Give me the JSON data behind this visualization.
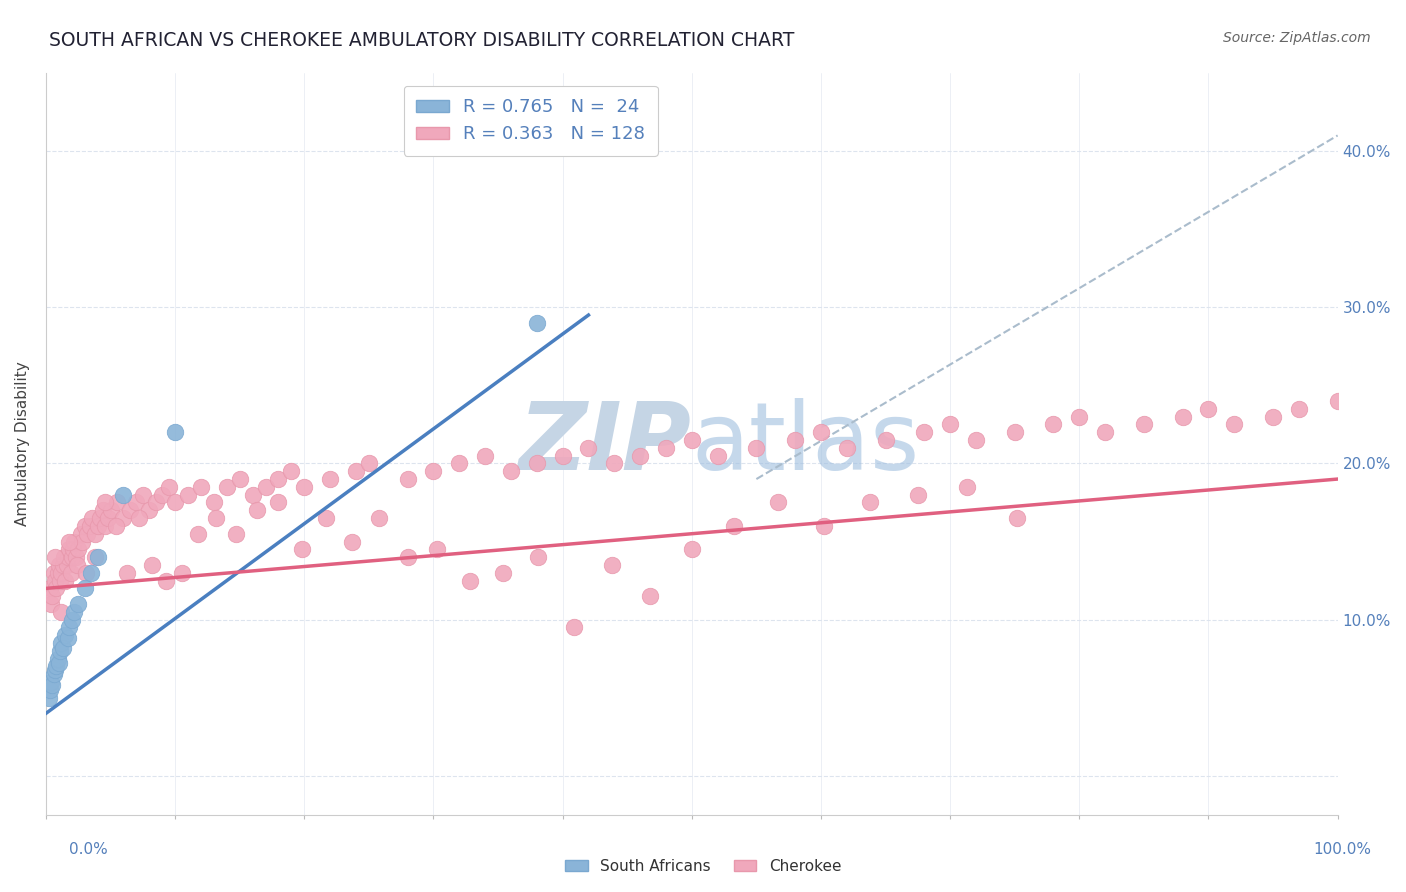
{
  "title": "SOUTH AFRICAN VS CHEROKEE AMBULATORY DISABILITY CORRELATION CHART",
  "source": "Source: ZipAtlas.com",
  "ylabel": "Ambulatory Disability",
  "south_african_color": "#8ab4d8",
  "south_african_edge": "#7aa8d0",
  "cherokee_color": "#f0a8bc",
  "cherokee_edge": "#e898ac",
  "blue_line_color": "#4a7fc0",
  "pink_line_color": "#e06080",
  "ref_line_color": "#aabccc",
  "grid_color": "#dde4ee",
  "background_color": "#ffffff",
  "watermark_color": "#c5d5e5",
  "title_color": "#222233",
  "source_color": "#666666",
  "tick_color": "#5580bb",
  "ylabel_color": "#444444",
  "xlim": [
    0.0,
    1.0
  ],
  "ylim": [
    -0.025,
    0.45
  ],
  "yticks": [
    0.0,
    0.1,
    0.2,
    0.3,
    0.4
  ],
  "sa_x": [
    0.002,
    0.003,
    0.004,
    0.005,
    0.006,
    0.007,
    0.008,
    0.009,
    0.01,
    0.011,
    0.012,
    0.013,
    0.015,
    0.017,
    0.018,
    0.02,
    0.022,
    0.025,
    0.03,
    0.035,
    0.04,
    0.06,
    0.1,
    0.38
  ],
  "sa_y": [
    0.05,
    0.055,
    0.06,
    0.058,
    0.065,
    0.068,
    0.07,
    0.075,
    0.072,
    0.08,
    0.085,
    0.082,
    0.09,
    0.088,
    0.095,
    0.1,
    0.105,
    0.11,
    0.12,
    0.13,
    0.14,
    0.18,
    0.22,
    0.29
  ],
  "ch_x": [
    0.003,
    0.004,
    0.005,
    0.006,
    0.007,
    0.008,
    0.009,
    0.01,
    0.011,
    0.012,
    0.013,
    0.014,
    0.015,
    0.016,
    0.017,
    0.018,
    0.019,
    0.02,
    0.021,
    0.022,
    0.023,
    0.025,
    0.027,
    0.028,
    0.03,
    0.032,
    0.034,
    0.036,
    0.038,
    0.04,
    0.042,
    0.044,
    0.046,
    0.048,
    0.05,
    0.055,
    0.06,
    0.065,
    0.07,
    0.075,
    0.08,
    0.085,
    0.09,
    0.095,
    0.1,
    0.11,
    0.12,
    0.13,
    0.14,
    0.15,
    0.16,
    0.17,
    0.18,
    0.19,
    0.2,
    0.22,
    0.24,
    0.25,
    0.28,
    0.3,
    0.32,
    0.34,
    0.36,
    0.38,
    0.4,
    0.42,
    0.44,
    0.46,
    0.48,
    0.5,
    0.52,
    0.55,
    0.58,
    0.6,
    0.62,
    0.65,
    0.68,
    0.7,
    0.72,
    0.75,
    0.78,
    0.8,
    0.82,
    0.85,
    0.88,
    0.9,
    0.92,
    0.95,
    0.97,
    1.0,
    0.007,
    0.012,
    0.018,
    0.024,
    0.031,
    0.038,
    0.046,
    0.054,
    0.063,
    0.072,
    0.082,
    0.093,
    0.105,
    0.118,
    0.132,
    0.147,
    0.163,
    0.18,
    0.198,
    0.217,
    0.237,
    0.258,
    0.28,
    0.303,
    0.328,
    0.354,
    0.381,
    0.409,
    0.438,
    0.468,
    0.5,
    0.533,
    0.567,
    0.602,
    0.638,
    0.675,
    0.713,
    0.752
  ],
  "ch_y": [
    0.12,
    0.11,
    0.115,
    0.13,
    0.125,
    0.12,
    0.13,
    0.135,
    0.125,
    0.13,
    0.135,
    0.14,
    0.125,
    0.135,
    0.14,
    0.145,
    0.13,
    0.14,
    0.145,
    0.15,
    0.14,
    0.145,
    0.155,
    0.15,
    0.16,
    0.155,
    0.16,
    0.165,
    0.155,
    0.16,
    0.165,
    0.17,
    0.16,
    0.165,
    0.17,
    0.175,
    0.165,
    0.17,
    0.175,
    0.18,
    0.17,
    0.175,
    0.18,
    0.185,
    0.175,
    0.18,
    0.185,
    0.175,
    0.185,
    0.19,
    0.18,
    0.185,
    0.19,
    0.195,
    0.185,
    0.19,
    0.195,
    0.2,
    0.19,
    0.195,
    0.2,
    0.205,
    0.195,
    0.2,
    0.205,
    0.21,
    0.2,
    0.205,
    0.21,
    0.215,
    0.205,
    0.21,
    0.215,
    0.22,
    0.21,
    0.215,
    0.22,
    0.225,
    0.215,
    0.22,
    0.225,
    0.23,
    0.22,
    0.225,
    0.23,
    0.235,
    0.225,
    0.23,
    0.235,
    0.24,
    0.14,
    0.105,
    0.15,
    0.135,
    0.13,
    0.14,
    0.175,
    0.16,
    0.13,
    0.165,
    0.135,
    0.125,
    0.13,
    0.155,
    0.165,
    0.155,
    0.17,
    0.175,
    0.145,
    0.165,
    0.15,
    0.165,
    0.14,
    0.145,
    0.125,
    0.13,
    0.14,
    0.095,
    0.135,
    0.115,
    0.145,
    0.16,
    0.175,
    0.16,
    0.175,
    0.18,
    0.185,
    0.165
  ],
  "sa_blue_line": {
    "x0": 0.0,
    "y0": 0.04,
    "x1": 0.42,
    "y1": 0.295
  },
  "ch_pink_line": {
    "x0": 0.0,
    "y0": 0.12,
    "x1": 1.0,
    "y1": 0.19
  },
  "ref_line": {
    "x0": 0.55,
    "y0": 0.19,
    "x1": 1.0,
    "y1": 0.41
  }
}
